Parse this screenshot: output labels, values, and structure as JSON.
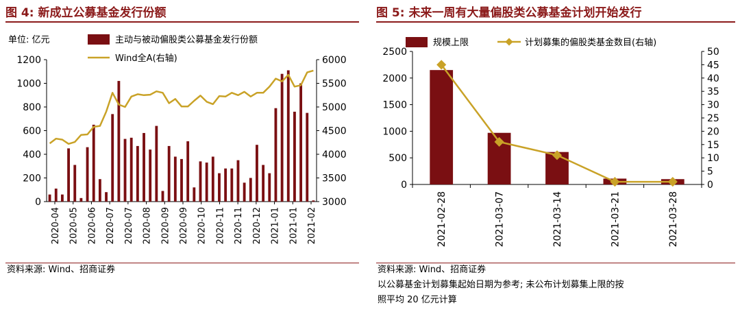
{
  "fig4": {
    "title": "图 4:  新成立公募基金发行份额",
    "source": "资料来源:  Wind、招商证券"
  },
  "fig5": {
    "title": "图 5:  未来一周有大量偏股类公募基金计划开始发行",
    "source": "资料来源:  Wind、招商证券",
    "note_line1": "以公募基金计划募集起始日期为参考;  未公布计划募集上限的按",
    "note_line2": "照平均 20 亿元计算"
  },
  "colors": {
    "bar": "#7a0f12",
    "line": "#c9a227",
    "title": "#8b1a1a"
  },
  "chart_data": [
    {
      "id": "fig4",
      "type": "bar+line",
      "unit_label": "单位:  亿元",
      "legend": [
        "主动与被动偏股类公募基金发行份额",
        "Wind全A(右轴)"
      ],
      "x_tick_labels": [
        "2020-04",
        "2020-05",
        "2020-06",
        "2020-07",
        "2020-07",
        "2020-08",
        "2020-09",
        "2020-09",
        "2020-10",
        "2020-11",
        "2020-11",
        "2020-12",
        "2021-01",
        "2021-01",
        "2021-02"
      ],
      "ylim": [
        0,
        1200
      ],
      "y_ticks": [
        0,
        200,
        400,
        600,
        800,
        1000,
        1200
      ],
      "y2lim": [
        3000,
        6000
      ],
      "y2_ticks": [
        3000,
        3500,
        4000,
        4500,
        5000,
        5500,
        6000
      ],
      "bars": [
        60,
        110,
        60,
        450,
        310,
        30,
        460,
        650,
        190,
        80,
        740,
        1020,
        530,
        540,
        470,
        580,
        440,
        640,
        90,
        470,
        380,
        360,
        510,
        120,
        340,
        330,
        380,
        240,
        280,
        280,
        350,
        160,
        200,
        480,
        310,
        240,
        790,
        1080,
        1110,
        760,
        1000,
        750,
        10
      ],
      "line": [
        4230,
        4330,
        4310,
        4220,
        4260,
        4410,
        4420,
        4580,
        4600,
        4900,
        5300,
        5050,
        5000,
        5220,
        5270,
        5250,
        5260,
        5330,
        5300,
        5080,
        5170,
        5010,
        5010,
        5130,
        5240,
        5110,
        5060,
        5230,
        5220,
        5300,
        5250,
        5320,
        5220,
        5300,
        5300,
        5430,
        5600,
        5540,
        5680,
        5430,
        5460,
        5730,
        5770
      ]
    },
    {
      "id": "fig5",
      "type": "bar+line",
      "legend": [
        "规模上限",
        "计划募集的偏股类基金数目(右轴)"
      ],
      "categories": [
        "2021-02-28",
        "2021-03-07",
        "2021-03-14",
        "2021-03-21",
        "2021-03-28"
      ],
      "values": [
        2150,
        970,
        610,
        110,
        100
      ],
      "line": [
        45,
        16,
        11,
        1,
        1
      ],
      "ylim": [
        0,
        2500
      ],
      "y_ticks": [
        0,
        500,
        1000,
        1500,
        2000,
        2500
      ],
      "y2lim": [
        0,
        50
      ],
      "y2_ticks": [
        0,
        5,
        10,
        15,
        20,
        25,
        30,
        35,
        40,
        45,
        50
      ]
    }
  ]
}
